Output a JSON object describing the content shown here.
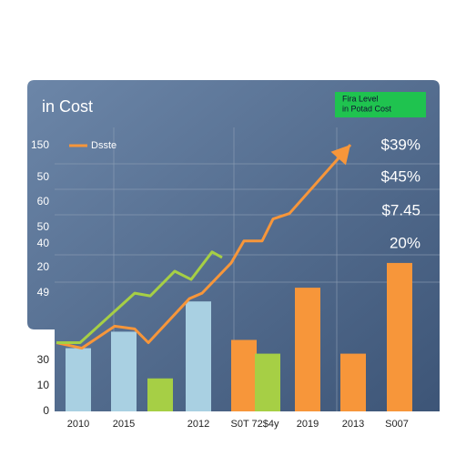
{
  "chart_data": {
    "type": "bar_line",
    "title": "in Cost",
    "badge": [
      "Fira Level",
      "in Potad Cost"
    ],
    "legend_label": "Dsste",
    "left_labels": [
      "150",
      "50",
      "60",
      "50",
      "40",
      "20",
      "49",
      "30",
      "10",
      "0"
    ],
    "right_labels": [
      "$39%",
      "$45%",
      "$7.45",
      "20%"
    ],
    "xlim": [
      0,
      100
    ],
    "ylim": [
      0,
      100
    ],
    "xticks": [
      {
        "value": 6,
        "label": "2010"
      },
      {
        "value": 18.5,
        "label": "2015"
      },
      {
        "value": 39,
        "label": "2012"
      },
      {
        "value": 54.5,
        "label": "S0T 72$4y"
      },
      {
        "value": 69,
        "label": "2019"
      },
      {
        "value": 81.5,
        "label": "2013"
      },
      {
        "value": 93.5,
        "label": "S007"
      }
    ],
    "bars": {
      "x": [
        6,
        18.5,
        28.5,
        39,
        51.5,
        58,
        69,
        81.5,
        94.25
      ],
      "values": [
        23,
        29,
        12,
        40,
        26,
        21,
        45,
        21,
        54
      ],
      "colors": [
        "#a9d0e2",
        "#a9d0e2",
        "#a6cf45",
        "#a9d0e2",
        "#f7963a",
        "#a6cf45",
        "#f7963a",
        "#f7963a",
        "#f7963a"
      ]
    },
    "series": [
      {
        "name": "Dsste",
        "color": "#f7963a",
        "x": [
          0,
          7,
          16,
          21.5,
          25.25,
          36.5,
          40,
          48,
          51.5,
          56.5,
          59.5,
          64,
          80.75
        ],
        "values": [
          25,
          23,
          31,
          30,
          25,
          41,
          43,
          54,
          62,
          62,
          70,
          72,
          97
        ]
      },
      {
        "color": "#a6cf45",
        "x": [
          0,
          6.5,
          21.5,
          25.75,
          32.5,
          37,
          42.75,
          45.5
        ],
        "values": [
          25,
          25,
          43,
          42,
          51,
          48,
          58,
          56
        ]
      }
    ]
  }
}
